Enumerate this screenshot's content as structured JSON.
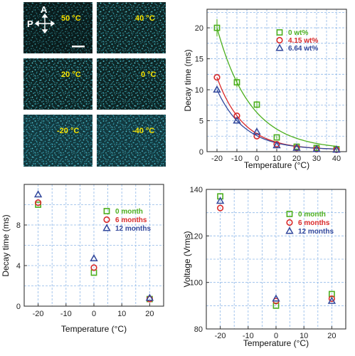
{
  "colors": {
    "green": "#4caf1e",
    "red": "#d92a2a",
    "blue": "#33489c",
    "grid": "#8fb8e8"
  },
  "micrographs": {
    "polarizer_label": "P",
    "analyzer_label": "A",
    "labels": [
      "50 °C",
      "40 °C",
      "20 °C",
      "0 °C",
      "-20 °C",
      "-40 °C"
    ]
  },
  "chart_data": [
    {
      "type": "scatter",
      "xlabel": "Temperature (°C)",
      "ylabel": "Decay time (ms)",
      "xlim": [
        -25,
        45
      ],
      "ylim": [
        0,
        23
      ],
      "xticks": [
        -20,
        -10,
        0,
        10,
        20,
        30,
        40
      ],
      "yticks": [
        0,
        5,
        10,
        15,
        20
      ],
      "grid": true,
      "legend": "top-right",
      "fit_curves": true,
      "x": [
        -20,
        -10,
        0,
        10,
        20,
        30,
        40
      ],
      "series": [
        {
          "name": "0 wt%",
          "marker": "square",
          "color": "#4caf1e",
          "values": [
            20.0,
            11.2,
            7.6,
            2.3,
            0.8,
            0.6,
            0.4
          ],
          "errors": [
            1.4,
            0.8,
            0.6,
            0.2,
            0.1,
            0.1,
            0.1
          ]
        },
        {
          "name": "4.15 wt%",
          "marker": "circle",
          "color": "#d92a2a",
          "values": [
            12.0,
            5.8,
            2.5,
            1.2,
            0.6,
            0.4,
            0.3
          ]
        },
        {
          "name": "6.64 wt%",
          "marker": "triangle",
          "color": "#33489c",
          "values": [
            10.0,
            5.0,
            3.2,
            1.0,
            0.6,
            0.4,
            0.3
          ]
        }
      ]
    },
    {
      "type": "scatter",
      "xlabel": "Temperature (°C)",
      "ylabel": "Decay time (ms)",
      "xlim": [
        -25,
        25
      ],
      "ylim": [
        0,
        12
      ],
      "xticks": [
        -20,
        -10,
        0,
        10,
        20
      ],
      "yticks": [
        0,
        4,
        8
      ],
      "grid": true,
      "legend": "right",
      "x": [
        -20,
        0,
        20
      ],
      "series": [
        {
          "name": "0 month",
          "marker": "square",
          "color": "#4caf1e",
          "values": [
            10.0,
            3.3,
            0.7
          ]
        },
        {
          "name": "6 months",
          "marker": "circle",
          "color": "#d92a2a",
          "values": [
            10.2,
            3.8,
            0.7
          ]
        },
        {
          "name": "12 months",
          "marker": "triangle",
          "color": "#33489c",
          "values": [
            11.0,
            4.7,
            0.8
          ]
        }
      ]
    },
    {
      "type": "scatter",
      "xlabel": "Temperature (°C)",
      "ylabel": "Voltage (Vrms)",
      "xlim": [
        -25,
        25
      ],
      "ylim": [
        80,
        140
      ],
      "xticks": [
        -20,
        -10,
        0,
        10,
        20
      ],
      "yticks": [
        80,
        100,
        120,
        140
      ],
      "grid": true,
      "legend": "right",
      "x": [
        -20,
        0,
        20
      ],
      "series": [
        {
          "name": "0 month",
          "marker": "square",
          "color": "#4caf1e",
          "values": [
            137,
            90,
            95
          ]
        },
        {
          "name": "6 months",
          "marker": "circle",
          "color": "#d92a2a",
          "values": [
            132,
            92,
            93
          ]
        },
        {
          "name": "12 months",
          "marker": "triangle",
          "color": "#33489c",
          "values": [
            135,
            93,
            92
          ]
        }
      ]
    }
  ]
}
